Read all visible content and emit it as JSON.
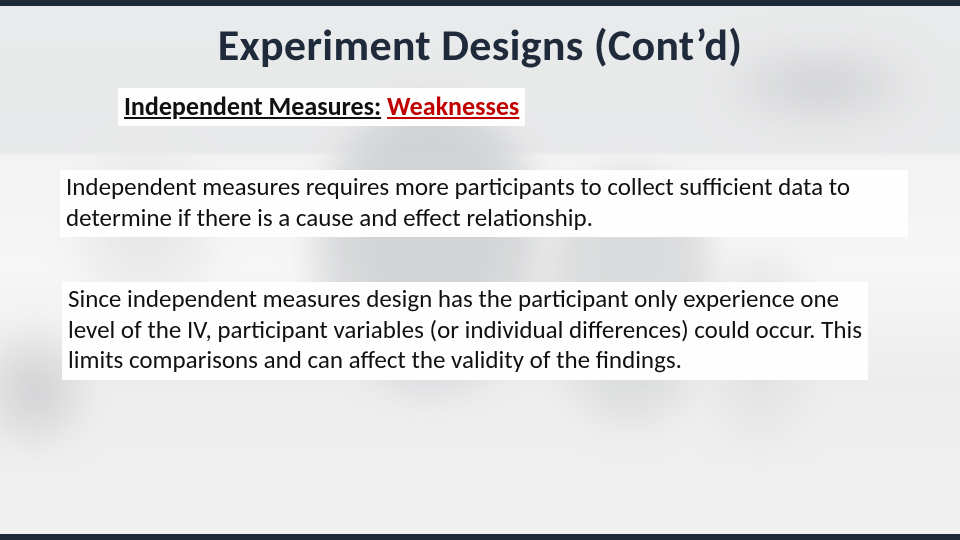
{
  "colors": {
    "frame_bar": "#1c2a3a",
    "title_text": "#1f2b3a",
    "body_text": "#111111",
    "accent_red": "#c00000",
    "textbox_bg": "#fefefe",
    "bg_top": "#e9eaeb",
    "bg_bottom": "#f1f1f2"
  },
  "typography": {
    "title_fontsize_pt": 33,
    "subheading_fontsize_pt": 20,
    "body_fontsize_pt": 19,
    "font_family": "Calibri"
  },
  "title": "Experiment Designs (Cont’d)",
  "subheading": {
    "prefix": "Independent Measures:",
    "accent": "Weaknesses"
  },
  "paragraphs": [
    "Independent measures requires more participants to collect sufficient data to determine if there is a cause and effect relationship.",
    "Since independent measures design has the participant only experience one level of the IV, participant variables (or individual differences) could occur. This limits comparisons and can affect the validity of the findings."
  ]
}
